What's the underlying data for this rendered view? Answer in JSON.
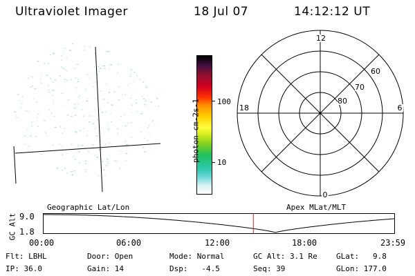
{
  "header": {
    "title": "Ultraviolet Imager",
    "date": "18 Jul 07",
    "time": "14:12:12 UT"
  },
  "colorbar": {
    "unit_label": "photon cm-2s-1",
    "ticks": [
      "100",
      "10"
    ]
  },
  "polar": {
    "mlt_labels": {
      "top": "12",
      "bottom": "0",
      "left": "18",
      "right": "6"
    },
    "lat_labels": [
      "60",
      "70",
      "80"
    ]
  },
  "orbit": {
    "left_title": "Geographic Lat/Lon",
    "right_title": "Apex MLat/MLT",
    "ylabel": "GC Alt",
    "y_ticks": [
      "9.0",
      "1.8"
    ],
    "x_ticks": [
      "00:00",
      "06:00",
      "12:00",
      "18:00",
      "23:59"
    ],
    "current_time_fraction": 0.597
  },
  "status": {
    "row1": [
      "Flt: LBHL",
      "Door: Open",
      "Mode: Normal",
      "GC Alt: 3.1 Re",
      "GLat:   9.8"
    ],
    "row2": [
      "IP: 36.0",
      "Gain: 14",
      "Dsp:   -4.5",
      "Seq: 39",
      "GLon: 177.0"
    ]
  },
  "colors": {
    "marker": "#cc2222",
    "noise": "#aee0d8"
  }
}
